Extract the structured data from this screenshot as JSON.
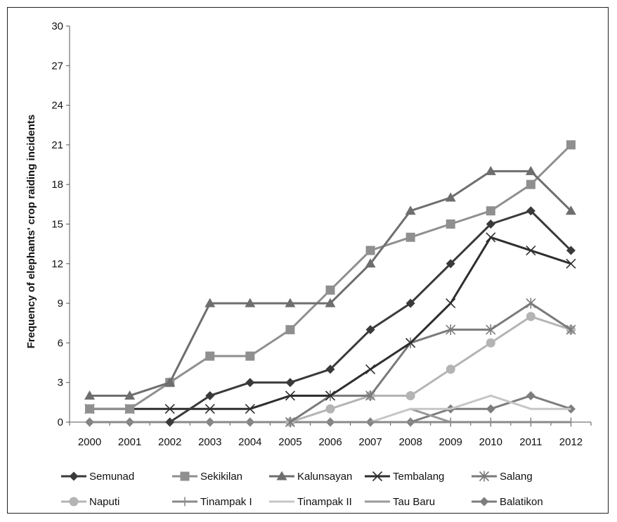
{
  "chart_data": {
    "type": "line",
    "ylabel": "Frequency of elephants' crop raiding incidents",
    "xlabel": "",
    "ylim": [
      0,
      30
    ],
    "yticks": [
      "0",
      "3",
      "6",
      "9",
      "12",
      "15",
      "18",
      "21",
      "24",
      "27",
      "30"
    ],
    "categories": [
      "2000",
      "2001",
      "2002",
      "2003",
      "2004",
      "2005",
      "2006",
      "2007",
      "2008",
      "2009",
      "2010",
      "2011",
      "2012"
    ],
    "grid": false,
    "legend_position": "bottom",
    "series": [
      {
        "name": "Semunad",
        "marker": "diamond",
        "color": "#3a3a3a",
        "values": [
          null,
          null,
          0,
          2,
          3,
          3,
          4,
          7,
          9,
          12,
          15,
          16,
          13
        ]
      },
      {
        "name": "Sekikilan",
        "marker": "square",
        "color": "#8f8f8f",
        "values": [
          1,
          1,
          3,
          5,
          5,
          7,
          10,
          13,
          14,
          15,
          16,
          18,
          21
        ]
      },
      {
        "name": "Kalunsayan",
        "marker": "triangle",
        "color": "#6e6e6e",
        "values": [
          2,
          2,
          3,
          9,
          9,
          9,
          9,
          12,
          16,
          17,
          19,
          19,
          16
        ]
      },
      {
        "name": "Tembalang",
        "marker": "x",
        "color": "#2e2e2e",
        "values": [
          1,
          1,
          1,
          1,
          1,
          2,
          2,
          4,
          6,
          9,
          14,
          13,
          12
        ]
      },
      {
        "name": "Salang",
        "marker": "star",
        "color": "#7a7a7a",
        "values": [
          null,
          null,
          null,
          null,
          null,
          0,
          2,
          2,
          6,
          7,
          7,
          9,
          7
        ]
      },
      {
        "name": "Naputi",
        "marker": "circle",
        "color": "#b4b4b4",
        "values": [
          null,
          null,
          null,
          null,
          null,
          0,
          1,
          2,
          2,
          4,
          6,
          8,
          7
        ]
      },
      {
        "name": "Tinampak I",
        "marker": "plus",
        "color": "#8a8a8a",
        "values": [
          0,
          0,
          0,
          0,
          0,
          0,
          0,
          0,
          0,
          0,
          0,
          0,
          0
        ]
      },
      {
        "name": "Tinampak II",
        "marker": "none",
        "color": "#c6c6c6",
        "values": [
          null,
          null,
          null,
          null,
          null,
          null,
          null,
          0,
          1,
          1,
          2,
          1,
          1
        ]
      },
      {
        "name": "Tau Baru",
        "marker": "none",
        "color": "#9a9a9a",
        "values": [
          null,
          null,
          null,
          null,
          null,
          null,
          null,
          null,
          1,
          0,
          null,
          null,
          null
        ]
      },
      {
        "name": "Balatikon",
        "marker": "diamond",
        "color": "#7d7d7d",
        "values": [
          0,
          0,
          0,
          0,
          0,
          0,
          0,
          0,
          0,
          1,
          1,
          2,
          1
        ]
      }
    ]
  }
}
